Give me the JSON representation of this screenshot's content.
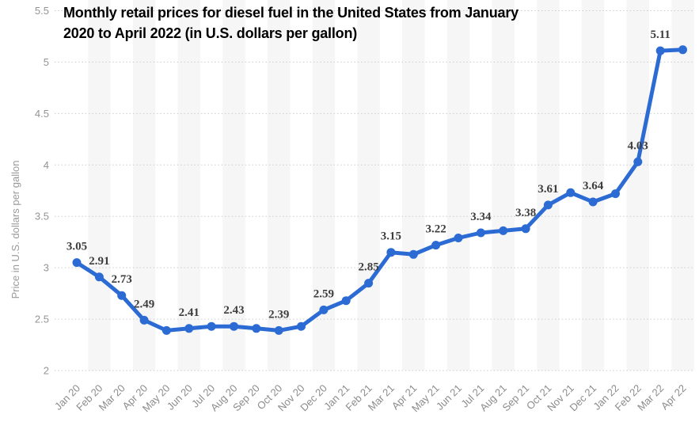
{
  "chart_data": {
    "type": "line",
    "title": "Monthly retail prices for diesel fuel in the United States from January 2020 to April 2022 (in U.S. dollars per gallon)",
    "title_lines": [
      "Monthly retail prices for diesel fuel in the United States from January",
      "2020 to April 2022 (in U.S. dollars per gallon)"
    ],
    "ylabel": "Price in U.S. dollars per gallon",
    "xlabel": "",
    "legend": "none",
    "grid": "horizontal-dotted",
    "ylim": [
      2,
      5.5
    ],
    "yticks": [
      "5.5",
      "5",
      "4.5",
      "4",
      "3.5",
      "3",
      "2.5",
      "2"
    ],
    "categories": [
      "Jan 20",
      "Feb 20",
      "Mar 20",
      "Apr 20",
      "May 20",
      "Jun 20",
      "Jul 20",
      "Aug 20",
      "Sep 20",
      "Oct 20",
      "Nov 20",
      "Dec 20",
      "Jan 21",
      "Feb 21",
      "Mar 21",
      "Apr 21",
      "May 21",
      "Jun 21",
      "Jul 21",
      "Aug 21",
      "Sep 21",
      "Oct 21",
      "Nov 21",
      "Dec 21",
      "Jan 22",
      "Feb 22",
      "Mar 22",
      "Apr 22"
    ],
    "values": [
      3.05,
      2.91,
      2.73,
      2.49,
      2.39,
      2.41,
      2.43,
      2.43,
      2.41,
      2.39,
      2.43,
      2.59,
      2.68,
      2.85,
      3.15,
      3.13,
      3.22,
      3.29,
      3.34,
      3.36,
      3.38,
      3.61,
      3.73,
      3.64,
      3.72,
      4.03,
      5.11,
      5.12
    ],
    "point_labels": {
      "0": "3.05",
      "1": "2.91",
      "2": "2.73",
      "3": "2.49",
      "5": "2.41",
      "7": "2.43",
      "9": "2.39",
      "11": "2.59",
      "13": "2.85",
      "14": "3.15",
      "16": "3.22",
      "18": "3.34",
      "20": "3.38",
      "21": "3.61",
      "23": "3.64",
      "25": "4.03",
      "26": "5.11"
    },
    "colors": {
      "line": "#2b6bd3",
      "marker": "#2b6bd3",
      "data_label": "#3d3d3d",
      "axis_text": "#8f8f8f",
      "grid": "#cccccc",
      "stripe": "#f6f6f6",
      "title": "#000000",
      "background": "#ffffff"
    }
  }
}
